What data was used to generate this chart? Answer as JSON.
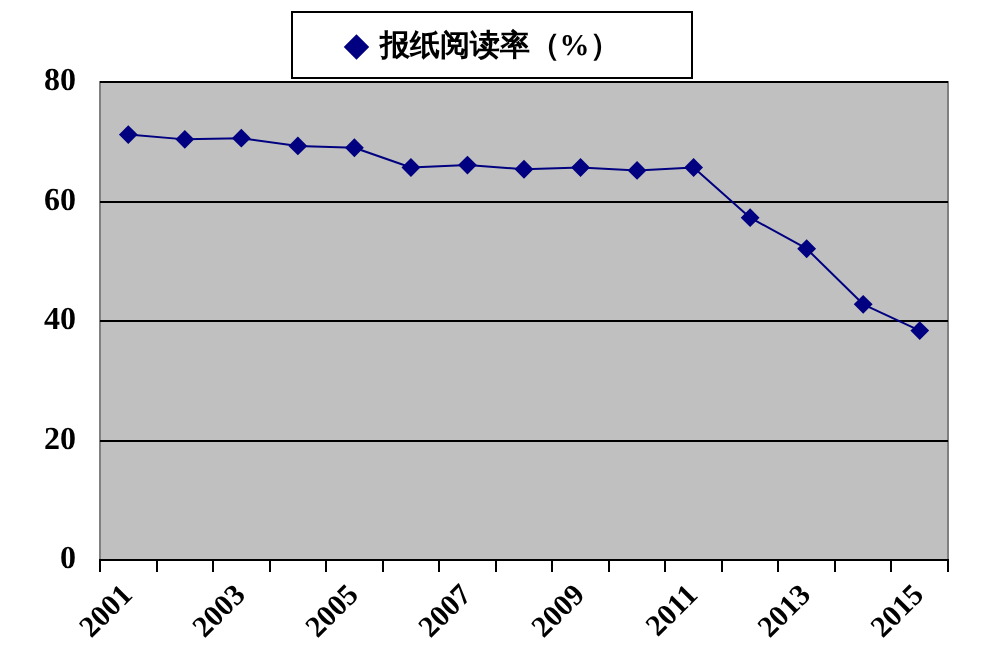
{
  "chart_data": {
    "type": "line",
    "categories": [
      "2001",
      null,
      "2003",
      null,
      "2005",
      null,
      "2007",
      null,
      "2009",
      null,
      "2011",
      null,
      "2013",
      null,
      "2015"
    ],
    "series": [
      {
        "name": "报纸阅读率（%）",
        "color": "#000080",
        "values": [
          71.2,
          70.4,
          70.6,
          69.3,
          69.0,
          65.7,
          66.1,
          65.4,
          65.7,
          65.2,
          65.7,
          57.3,
          52.1,
          42.8,
          38.4
        ]
      }
    ],
    "ylim": [
      0,
      80
    ],
    "yticks": [
      0,
      20,
      40,
      60,
      80
    ],
    "grid": "y",
    "legend": "top",
    "marker": "diamond",
    "line_style": "solid"
  }
}
